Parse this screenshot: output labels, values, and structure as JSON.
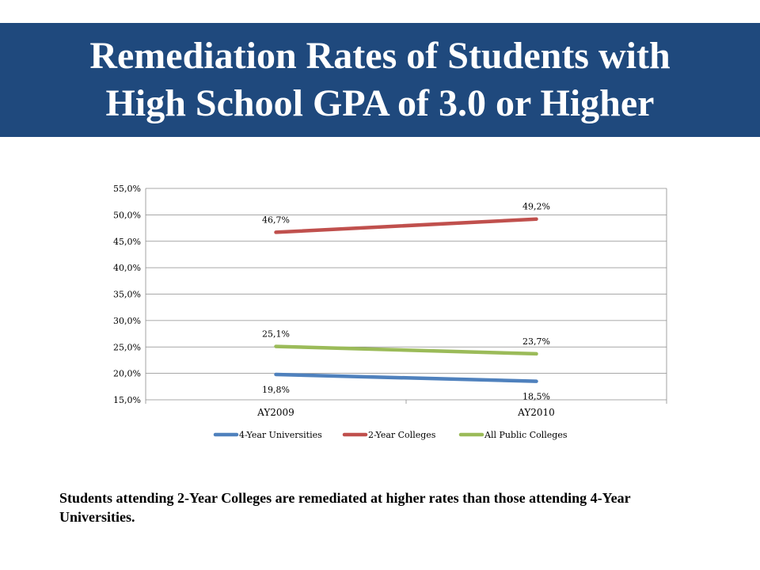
{
  "slide": {
    "title": "Remediation Rates of Students with\nHigh School GPA of 3.0 or Higher",
    "caption": "Students attending 2-Year Colleges are remediated at higher rates than those attending 4-Year Universities."
  },
  "colors": {
    "title_bar": "#1f497d",
    "title_text": "#ffffff"
  },
  "chart_data": {
    "type": "line",
    "categories": [
      "AY2009",
      "AY2010"
    ],
    "ylim": [
      15,
      55
    ],
    "yticks": [
      "15,0%",
      "20,0%",
      "25,0%",
      "30,0%",
      "35,0%",
      "40,0%",
      "45,0%",
      "50,0%",
      "55,0%"
    ],
    "grid": true,
    "legend_position": "bottom",
    "series": [
      {
        "name": "4-Year Universities",
        "values": [
          19.8,
          18.5
        ],
        "labels": [
          "19,8%",
          "18,5%"
        ],
        "color": "#4f81bd",
        "label_side": "below"
      },
      {
        "name": "2-Year Colleges",
        "values": [
          46.7,
          49.2
        ],
        "labels": [
          "46,7%",
          "49,2%"
        ],
        "color": "#c0504d",
        "label_side": "above"
      },
      {
        "name": "All Public Colleges",
        "values": [
          25.1,
          23.7
        ],
        "labels": [
          "25,1%",
          "23,7%"
        ],
        "color": "#9bbb59",
        "label_side": "above"
      }
    ]
  }
}
